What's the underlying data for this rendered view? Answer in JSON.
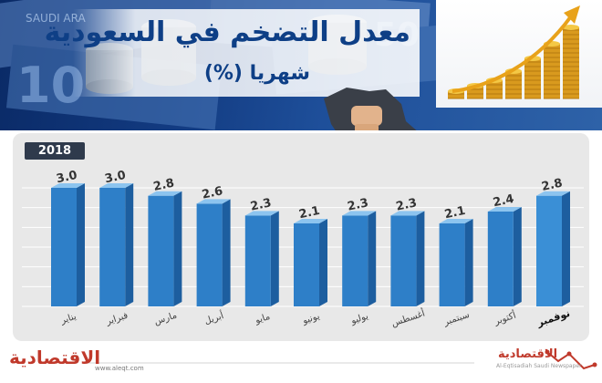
{
  "header": {
    "title": "معدل التضخم في السعودية",
    "subtitle": "شهريا (%)"
  },
  "chart_data": {
    "type": "bar",
    "title": "معدل التضخم في السعودية",
    "subtitle": "شهريا (%)",
    "series_label": "2018",
    "categories": [
      "يناير",
      "فبراير",
      "مارس",
      "أبريل",
      "مايو",
      "يونيو",
      "يوليو",
      "أغسطس",
      "سبتمبر",
      "أكتوبر",
      "نوفمبر"
    ],
    "values": [
      3.0,
      3.0,
      2.8,
      2.6,
      2.3,
      2.1,
      2.3,
      2.3,
      2.1,
      2.4,
      2.8
    ],
    "value_labels": [
      "3.0",
      "3.0",
      "2.8",
      "2.6",
      "2.3",
      "2.1",
      "2.3",
      "2.3",
      "2.1",
      "2.4",
      "2.8"
    ],
    "highlight_index": 10,
    "ylim": [
      0,
      3.2
    ],
    "grid": true,
    "colors": {
      "bar_front": "#2e7fc8",
      "bar_side": "#1d5e9f",
      "bar_top": "#8cc4ef",
      "bar_highlight": "#3a8fd6",
      "label": "#333333",
      "grid": "#ffffff"
    }
  },
  "footer": {
    "logo_left": "الاقتصادية",
    "url": "www.aleqt.com",
    "logo_right": "الاقتصادية",
    "logo_right_sub": "Al-Eqtisadiah Saudi Newspaper"
  }
}
